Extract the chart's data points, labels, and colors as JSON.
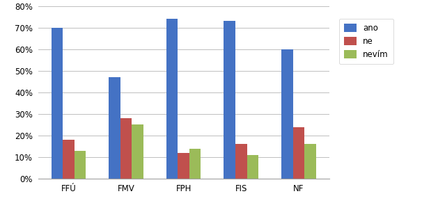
{
  "categories": [
    "FFÚ",
    "FMV",
    "FPH",
    "FIS",
    "NF"
  ],
  "series": {
    "ano": [
      0.7,
      0.47,
      0.74,
      0.73,
      0.6
    ],
    "ne": [
      0.18,
      0.28,
      0.12,
      0.16,
      0.24
    ],
    "nevím": [
      0.13,
      0.25,
      0.14,
      0.11,
      0.16
    ]
  },
  "series_labels": [
    "ano",
    "ne",
    "nevím"
  ],
  "colors": {
    "ano": "#4472C4",
    "ne": "#C0504D",
    "nevím": "#9BBB59"
  },
  "ylim": [
    0,
    0.8
  ],
  "yticks": [
    0.0,
    0.1,
    0.2,
    0.3,
    0.4,
    0.5,
    0.6,
    0.7,
    0.8
  ],
  "ytick_labels": [
    "0%",
    "10%",
    "20%",
    "30%",
    "40%",
    "50%",
    "60%",
    "70%",
    "80%"
  ],
  "bar_width": 0.2,
  "background_color": "#FFFFFF",
  "grid_color": "#BFBFBF"
}
